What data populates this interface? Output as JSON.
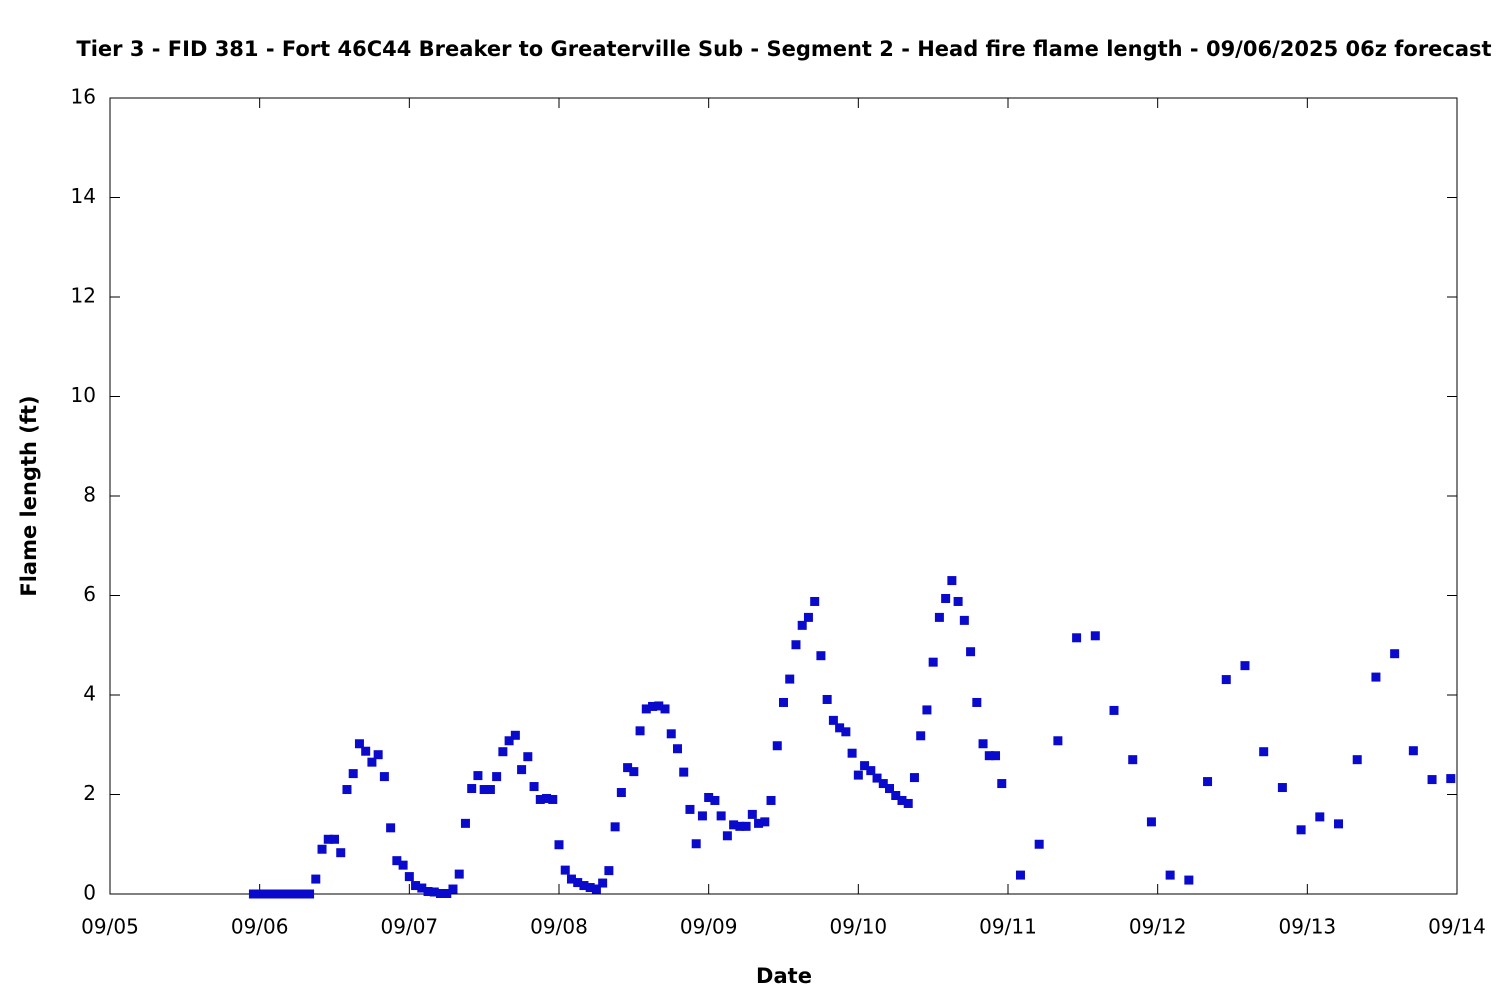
{
  "chart_data": {
    "type": "scatter",
    "title": "Tier 3 - FID 381 - Fort 46C44 Breaker to Greaterville Sub - Segment 2 - Head fire flame length - 09/06/2025 06z forecast",
    "x_label": "Date",
    "y_label": "Flame length (ft)",
    "color": "#0a0acc",
    "x": [
      23,
      24,
      25,
      26,
      27,
      28,
      29,
      30,
      31,
      32,
      33,
      34,
      35,
      36,
      37,
      38,
      39,
      40,
      41,
      42,
      43,
      44,
      45,
      46,
      47,
      48,
      49,
      50,
      51,
      52,
      53,
      54,
      55,
      56,
      57,
      58,
      59,
      60,
      61,
      62,
      63,
      64,
      65,
      66,
      67,
      68,
      69,
      70,
      71,
      72,
      73,
      74,
      75,
      76,
      77,
      78,
      79,
      80,
      81,
      82,
      83,
      84,
      85,
      86,
      87,
      88,
      89,
      90,
      91,
      92,
      93,
      94,
      95,
      96,
      97,
      98,
      99,
      100,
      101,
      102,
      103,
      104,
      105,
      106,
      107,
      108,
      109,
      110,
      111,
      112,
      113,
      114,
      115,
      116,
      117,
      118,
      119,
      120,
      121,
      122,
      123,
      124,
      125,
      126,
      127,
      128,
      129,
      130,
      131,
      132,
      133,
      134,
      135,
      136,
      137,
      138,
      139,
      140,
      141,
      142,
      143,
      146,
      149,
      152,
      155,
      158,
      161,
      164,
      167,
      170,
      173,
      176,
      179,
      182,
      185,
      188,
      191,
      194,
      197,
      200,
      203,
      206,
      209,
      212,
      215
    ],
    "values": [
      0,
      0,
      0,
      0,
      0,
      0,
      0,
      0,
      0,
      0,
      0.3,
      0.9,
      1.1,
      1.1,
      0.83,
      2.1,
      2.42,
      3.02,
      2.87,
      2.65,
      2.8,
      2.36,
      1.33,
      0.67,
      0.58,
      0.35,
      0.17,
      0.12,
      0.05,
      0.04,
      0.01,
      0.01,
      0.1,
      0.4,
      1.42,
      2.12,
      2.38,
      2.1,
      2.1,
      2.36,
      2.86,
      3.08,
      3.19,
      2.5,
      2.76,
      2.16,
      1.9,
      1.92,
      1.9,
      0.99,
      0.48,
      0.3,
      0.23,
      0.17,
      0.13,
      0.1,
      0.22,
      0.47,
      1.35,
      2.04,
      2.54,
      2.46,
      3.28,
      3.72,
      3.77,
      3.78,
      3.72,
      3.22,
      2.92,
      2.45,
      1.7,
      1.01,
      1.57,
      1.94,
      1.88,
      1.57,
      1.17,
      1.39,
      1.36,
      1.36,
      1.6,
      1.42,
      1.45,
      1.88,
      2.98,
      3.85,
      4.32,
      5.01,
      5.4,
      5.56,
      5.88,
      4.79,
      3.91,
      3.49,
      3.34,
      3.26,
      2.83,
      2.39,
      2.58,
      2.48,
      2.33,
      2.22,
      2.12,
      1.98,
      1.88,
      1.82,
      2.34,
      3.18,
      3.7,
      4.66,
      5.56,
      5.94,
      6.3,
      5.88,
      5.5,
      4.87,
      3.85,
      3.02,
      2.78,
      2.78,
      2.22,
      0.38,
      1.0,
      3.08,
      5.15,
      5.19,
      3.69,
      2.7,
      1.45,
      0.38,
      0.28,
      2.26,
      4.31,
      4.59,
      2.86,
      2.14,
      1.29,
      1.55,
      1.41,
      2.7,
      4.36,
      4.83,
      2.88,
      2.3,
      2.32
    ],
    "xlim": [
      0,
      216
    ],
    "xticks": [
      {
        "value": 0,
        "label": "09/05"
      },
      {
        "value": 24,
        "label": "09/06"
      },
      {
        "value": 48,
        "label": "09/07"
      },
      {
        "value": 72,
        "label": "09/08"
      },
      {
        "value": 96,
        "label": "09/09"
      },
      {
        "value": 120,
        "label": "09/10"
      },
      {
        "value": 144,
        "label": "09/11"
      },
      {
        "value": 168,
        "label": "09/12"
      },
      {
        "value": 192,
        "label": "09/13"
      },
      {
        "value": 216,
        "label": "09/14"
      }
    ],
    "ylim": [
      0,
      16
    ],
    "yticks": [
      0,
      2,
      4,
      6,
      8,
      10,
      12,
      14,
      16
    ]
  }
}
